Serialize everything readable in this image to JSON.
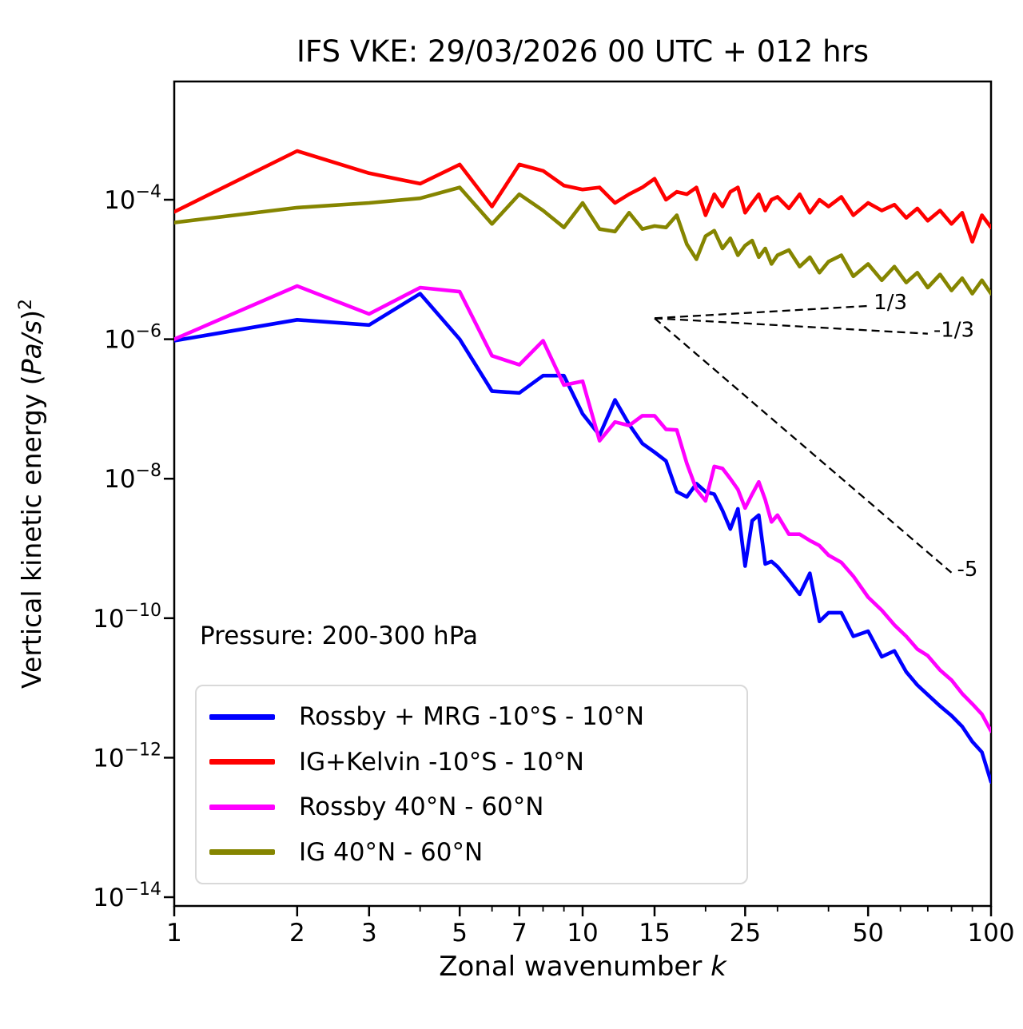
{
  "chart_data": {
    "type": "line",
    "title": "IFS VKE: 29/03/2026 00 UTC + 012 hrs",
    "xlabel_text": "Zonal wavenumber ",
    "xlabel_var": "k",
    "ylabel_text": "Vertical kinetic energy (",
    "ylabel_var": "Pa/s",
    "ylabel_close": ")",
    "ylabel_exponent": "2",
    "annotation": "Pressure: 200-300 hPa",
    "x_scale": "log",
    "y_scale": "log",
    "xlim": [
      1,
      100
    ],
    "ylim": [
      7e-15,
      0.005
    ],
    "grid": false,
    "legend_position": "lower left",
    "x_ticks_major": [
      1,
      2,
      3,
      5,
      7,
      10,
      15,
      25,
      50,
      100
    ],
    "x_ticks_minor": [
      4,
      6,
      8,
      9,
      20,
      30,
      40,
      60,
      70,
      80,
      90
    ],
    "y_tick_exponents": [
      -4,
      -6,
      -8,
      -10,
      -12,
      -14
    ],
    "x": [
      1,
      2,
      3,
      4,
      5,
      6,
      7,
      8,
      9,
      10,
      11,
      12,
      13,
      14,
      15,
      16,
      17,
      18,
      19,
      20,
      21,
      22,
      23,
      24,
      25,
      26,
      27,
      28,
      29,
      30,
      32,
      34,
      36,
      38,
      40,
      43,
      46,
      50,
      54,
      58,
      62,
      66,
      70,
      75,
      80,
      85,
      90,
      95,
      100
    ],
    "series": [
      {
        "name": "Rossby + MRG -10°S - 10°N",
        "color": "#0000ff",
        "values": [
          9.5e-07,
          1.9e-06,
          1.6e-06,
          4.5e-06,
          1e-06,
          1.8e-07,
          1.7e-07,
          3e-07,
          3e-07,
          8.5e-08,
          4.2e-08,
          1.35e-07,
          6e-08,
          3.2e-08,
          2.4e-08,
          1.8e-08,
          6.5e-09,
          5.5e-09,
          8.5e-09,
          6.5e-09,
          6e-09,
          3.5e-09,
          1.9e-09,
          3.7e-09,
          5.6e-10,
          2.5e-09,
          3e-09,
          6e-10,
          6.5e-10,
          5.5e-10,
          3.5e-10,
          2.2e-10,
          4.4e-10,
          9e-11,
          1.2e-10,
          1.2e-10,
          5.5e-11,
          6.5e-11,
          2.8e-11,
          3.4e-11,
          1.7e-11,
          1.1e-11,
          8e-12,
          5.5e-12,
          4e-12,
          2.8e-12,
          1.7e-12,
          1.2e-12,
          4.5e-13
        ]
      },
      {
        "name": "IG+Kelvin -10°S - 10°N",
        "color": "#ff0000",
        "values": [
          6.7e-05,
          0.0005,
          0.00024,
          0.00017,
          0.00032,
          8e-05,
          0.00032,
          0.00026,
          0.00016,
          0.00014,
          0.00015,
          9e-05,
          0.00012,
          0.00015,
          0.0002,
          0.0001,
          0.00013,
          0.00012,
          0.00015,
          6e-05,
          0.00012,
          8e-05,
          0.00013,
          0.00015,
          6.5e-05,
          9e-05,
          0.00012,
          7e-05,
          0.0001,
          0.00011,
          7.5e-05,
          0.00012,
          6.5e-05,
          0.0001,
          8e-05,
          0.00011,
          6e-05,
          9e-05,
          7e-05,
          8.5e-05,
          5.5e-05,
          7.5e-05,
          5e-05,
          7e-05,
          4.5e-05,
          6.5e-05,
          2.5e-05,
          6e-05,
          4e-05
        ]
      },
      {
        "name": "Rossby 40°N - 60°N",
        "color": "#ff00ff",
        "values": [
          1e-06,
          5.8e-06,
          2.3e-06,
          5.5e-06,
          4.8e-06,
          5.8e-07,
          4.3e-07,
          9.5e-07,
          2.2e-07,
          2.5e-07,
          3.5e-08,
          6.5e-08,
          5.8e-08,
          8e-08,
          8e-08,
          5.1e-08,
          5e-08,
          1.65e-08,
          7e-09,
          4.8e-09,
          1.5e-08,
          1.4e-08,
          1e-08,
          7e-09,
          3.8e-09,
          6e-09,
          9e-09,
          5e-09,
          2.4e-09,
          3e-09,
          1.6e-09,
          1.6e-09,
          1.3e-09,
          1.1e-09,
          8e-10,
          6.3e-10,
          4e-10,
          2e-10,
          1.3e-10,
          8e-11,
          5.5e-11,
          3.6e-11,
          2.9e-11,
          1.8e-11,
          1.3e-11,
          8.3e-12,
          5.9e-12,
          4.2e-12,
          2.4e-12
        ]
      },
      {
        "name": "IG 40°N - 60°N",
        "color": "#858500",
        "values": [
          4.7e-05,
          7.7e-05,
          9e-05,
          0.000105,
          0.00015,
          4.5e-05,
          0.00012,
          7e-05,
          4e-05,
          9e-05,
          3.8e-05,
          3.5e-05,
          6.5e-05,
          3.8e-05,
          4.2e-05,
          4e-05,
          6e-05,
          2.3e-05,
          1.4e-05,
          3e-05,
          3.6e-05,
          2e-05,
          2.8e-05,
          1.6e-05,
          2.2e-05,
          2.6e-05,
          1.5e-05,
          2e-05,
          1.2e-05,
          1.6e-05,
          1.9e-05,
          1.1e-05,
          1.5e-05,
          9e-06,
          1.3e-05,
          1.6e-05,
          8e-06,
          1.2e-05,
          7e-06,
          1.1e-05,
          6.5e-06,
          9e-06,
          5.5e-06,
          8.5e-06,
          5e-06,
          7.5e-06,
          4.5e-06,
          7e-06,
          4.5e-06
        ]
      }
    ],
    "reference_lines": [
      {
        "label": "1/3",
        "slope": 0.3333,
        "from": [
          15,
          2e-06
        ],
        "to": [
          50,
          3e-06
        ]
      },
      {
        "label": "-1/3",
        "slope": -0.3333,
        "from": [
          15,
          2e-06
        ],
        "to": [
          70,
          1.2e-06
        ]
      },
      {
        "label": "-5",
        "slope": -5,
        "from": [
          15,
          2e-06
        ],
        "to": [
          80,
          4.5e-10
        ]
      }
    ]
  }
}
